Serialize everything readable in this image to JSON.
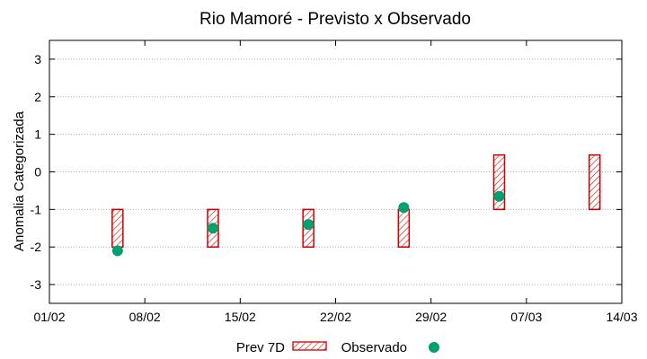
{
  "chart_data": {
    "type": "scatter",
    "title": "Rio Mamoré - Previsto x Observado",
    "xlabel": "",
    "ylabel": "Anomalia Categorizada",
    "x_ticks": [
      "01/02",
      "08/02",
      "15/02",
      "22/02",
      "29/02",
      "07/03",
      "14/03"
    ],
    "y_ticks": [
      "-3",
      "-2",
      "-1",
      "0",
      "1",
      "2",
      "3"
    ],
    "ylim": [
      -3.5,
      3.5
    ],
    "xlim_days": [
      0,
      42
    ],
    "grid": true,
    "legend_position": "bottom",
    "series": [
      {
        "name": "Prev 7D",
        "kind": "range",
        "color": "#cc0000",
        "points": [
          {
            "day": 5,
            "low": -2.0,
            "high": -1.0
          },
          {
            "day": 12,
            "low": -2.0,
            "high": -1.0
          },
          {
            "day": 19,
            "low": -2.0,
            "high": -1.0
          },
          {
            "day": 26,
            "low": -2.0,
            "high": -1.0
          },
          {
            "day": 33,
            "low": -1.0,
            "high": 0.45
          },
          {
            "day": 40,
            "low": -1.0,
            "high": 0.45
          }
        ]
      },
      {
        "name": "Observado",
        "kind": "point",
        "color": "#00a070",
        "points": [
          {
            "day": 5,
            "value": -2.1
          },
          {
            "day": 12,
            "value": -1.5
          },
          {
            "day": 19,
            "value": -1.4
          },
          {
            "day": 26,
            "value": -0.95
          },
          {
            "day": 33,
            "value": -0.65
          }
        ]
      }
    ]
  }
}
